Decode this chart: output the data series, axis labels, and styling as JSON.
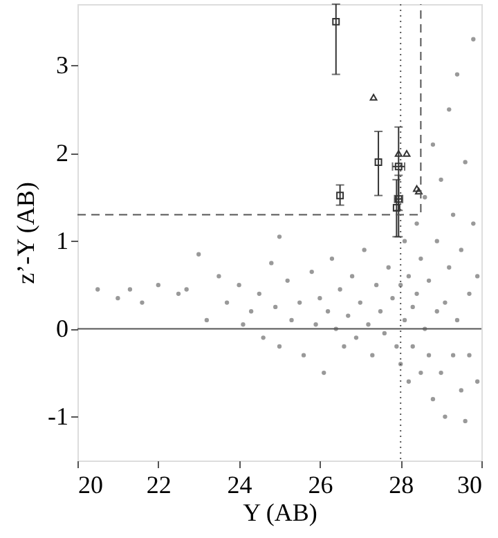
{
  "chart_data": {
    "type": "scatter",
    "xlabel": "Y (AB)",
    "ylabel": "z’-Y (AB)",
    "xlim": [
      20,
      30
    ],
    "ylim": [
      -1.5,
      3.7
    ],
    "xticks": [
      20,
      22,
      24,
      26,
      28,
      30
    ],
    "yticks": [
      -1,
      0,
      1,
      2,
      3
    ],
    "grid": false,
    "ref_lines": [
      {
        "axis": "y",
        "value": 0,
        "line_style": "solid",
        "color": "#555555"
      },
      {
        "axis": "x",
        "value": 28,
        "line_style": "dotted",
        "color": "#555555"
      }
    ],
    "series": [
      {
        "marker": "circle",
        "color": "#999999",
        "x": [
          20.5,
          21.0,
          21.3,
          21.6,
          22.0,
          22.5,
          22.7,
          23.0,
          23.2,
          23.5,
          23.7,
          24.0,
          24.1,
          24.3,
          24.5,
          24.6,
          24.8,
          24.9,
          25.0,
          25.0,
          25.2,
          25.3,
          25.5,
          25.6,
          25.8,
          25.9,
          26.0,
          26.1,
          26.2,
          26.3,
          26.4,
          26.5,
          26.6,
          26.7,
          26.8,
          26.9,
          27.0,
          27.1,
          27.2,
          27.3,
          27.4,
          27.5,
          27.6,
          27.7,
          27.8,
          27.9,
          28.0,
          28.0,
          28.1,
          28.1,
          28.2,
          28.2,
          28.3,
          28.3,
          28.4,
          28.4,
          28.5,
          28.5,
          28.6,
          28.6,
          28.7,
          28.7,
          28.8,
          28.8,
          28.9,
          28.9,
          29.0,
          29.0,
          29.1,
          29.1,
          29.2,
          29.2,
          29.3,
          29.3,
          29.4,
          29.4,
          29.5,
          29.5,
          29.6,
          29.6,
          29.7,
          29.7,
          29.8,
          29.8,
          29.9,
          29.9
        ],
        "values": [
          0.45,
          0.35,
          0.45,
          0.3,
          0.5,
          0.4,
          0.45,
          0.85,
          0.1,
          0.6,
          0.3,
          0.5,
          0.05,
          0.2,
          0.4,
          -0.1,
          0.75,
          0.25,
          1.05,
          -0.2,
          0.55,
          0.1,
          0.3,
          -0.3,
          0.65,
          0.05,
          0.35,
          -0.5,
          0.2,
          0.8,
          0.0,
          0.45,
          -0.2,
          0.15,
          0.6,
          -0.1,
          0.3,
          0.9,
          0.05,
          -0.3,
          0.5,
          0.2,
          -0.05,
          0.7,
          0.35,
          -0.2,
          0.5,
          -0.4,
          1.0,
          0.1,
          -0.6,
          0.6,
          0.25,
          -0.2,
          1.2,
          0.4,
          -0.5,
          0.8,
          0.0,
          1.5,
          -0.3,
          0.55,
          -0.8,
          2.1,
          0.2,
          1.0,
          -0.5,
          1.7,
          0.3,
          -1.0,
          2.5,
          0.7,
          -0.3,
          1.3,
          0.1,
          2.9,
          -0.7,
          0.9,
          -1.05,
          1.9,
          0.4,
          -0.3,
          1.2,
          3.3,
          -0.6,
          0.6
        ]
      },
      {
        "marker": "square",
        "color": "#333333",
        "x": [
          26.4,
          26.5,
          27.45,
          27.95,
          27.95,
          27.9
        ],
        "values": [
          3.5,
          1.52,
          1.9,
          1.85,
          1.48,
          1.38
        ],
        "errors": [
          [
            2.9,
            3.7
          ],
          [
            1.41,
            1.64
          ],
          [
            1.52,
            2.25
          ],
          [
            1.35,
            2.3
          ],
          [
            1.05,
            1.75
          ],
          [
            1.05,
            1.7
          ]
        ],
        "xerrors": [
          null,
          null,
          null,
          [
            27.8,
            28.1
          ],
          [
            27.85,
            28.05
          ],
          null
        ]
      },
      {
        "marker": "triangle",
        "color": "#333333",
        "x": [
          27.33,
          27.95,
          28.15,
          28.4,
          28.45
        ],
        "values": [
          2.64,
          2.0,
          2.0,
          1.6,
          1.57
        ]
      },
      {
        "type": "line",
        "line_style": "dashed",
        "color": "#555555",
        "x": [
          20,
          28.5,
          28.5
        ],
        "values": [
          1.3,
          1.3,
          3.7
        ]
      }
    ]
  }
}
